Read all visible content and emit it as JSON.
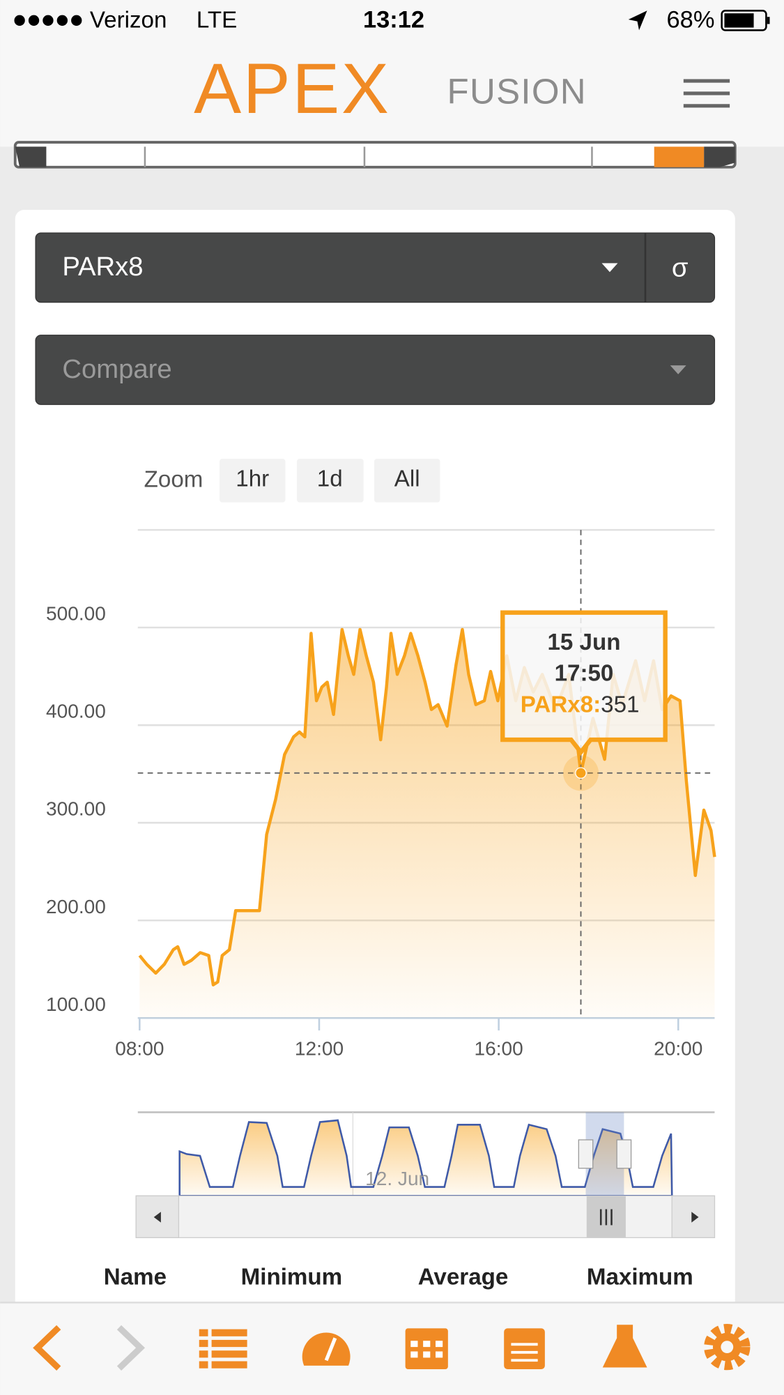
{
  "status_bar": {
    "carrier": "Verizon",
    "network": "LTE",
    "time": "13:12",
    "battery": "68%"
  },
  "header": {
    "logo_main": "APEX",
    "logo_sub": "FUSION"
  },
  "controls": {
    "probe": "PARx8",
    "stat": "σ",
    "compare": "Compare"
  },
  "zoom": {
    "label": "Zoom",
    "buttons": [
      "1hr",
      "1d",
      "All"
    ]
  },
  "chart_data": {
    "type": "line",
    "color": "#f7a21b",
    "x": [
      8.0,
      8.16,
      8.36,
      8.55,
      8.75,
      8.85,
      8.99,
      9.15,
      9.35,
      9.54,
      9.64,
      9.74,
      9.84,
      10.0,
      10.14,
      10.67,
      10.83,
      11.03,
      11.23,
      11.43,
      11.56,
      11.68,
      11.82,
      11.94,
      12.06,
      12.18,
      12.32,
      12.51,
      12.65,
      12.77,
      12.91,
      13.05,
      13.21,
      13.37,
      13.5,
      13.6,
      13.74,
      13.9,
      14.04,
      14.2,
      14.36,
      14.5,
      14.65,
      14.85,
      15.05,
      15.19,
      15.33,
      15.49,
      15.68,
      15.82,
      15.98,
      16.18,
      16.38,
      16.57,
      16.77,
      16.97,
      17.27,
      17.56,
      17.83,
      18.1,
      18.36,
      18.55,
      18.75,
      19.05,
      19.25,
      19.45,
      19.64,
      19.84,
      20.04,
      20.18,
      20.38,
      20.57,
      20.73,
      20.81
    ],
    "values": [
      164,
      155,
      146,
      155,
      170,
      173,
      155,
      159,
      167,
      164,
      134,
      137,
      164,
      170,
      210,
      210,
      288,
      324,
      370,
      388,
      393,
      388,
      494,
      425,
      439,
      444,
      411,
      498,
      471,
      452,
      498,
      471,
      444,
      385,
      439,
      494,
      452,
      471,
      494,
      471,
      444,
      416,
      421,
      399,
      462,
      498,
      452,
      421,
      425,
      455,
      425,
      471,
      425,
      459,
      434,
      452,
      416,
      452,
      351,
      407,
      365,
      452,
      421,
      466,
      425,
      466,
      416,
      430,
      425,
      343,
      246,
      313,
      292,
      265
    ],
    "xlim": [
      7.96,
      20.81
    ],
    "xticks": [
      {
        "value": 8,
        "label": "08:00"
      },
      {
        "value": 12,
        "label": "12:00"
      },
      {
        "value": 16,
        "label": "16:00"
      },
      {
        "value": 20,
        "label": "20:00"
      }
    ],
    "ylim": [
      100,
      600
    ],
    "yticks": [
      {
        "value": 100,
        "label": "100.00"
      },
      {
        "value": 200,
        "label": "200.00"
      },
      {
        "value": 300,
        "label": "300.00"
      },
      {
        "value": 400,
        "label": "400.00"
      },
      {
        "value": 500,
        "label": "500.00"
      }
    ],
    "grid": true,
    "tooltip": {
      "date": "15 Jun",
      "time": "17:50",
      "label": "PARx8:"
    }
  },
  "navigator": {
    "label": "12. Jun"
  },
  "table": {
    "columns": [
      "Name",
      "Minimum",
      "Average",
      "Maximum"
    ]
  }
}
